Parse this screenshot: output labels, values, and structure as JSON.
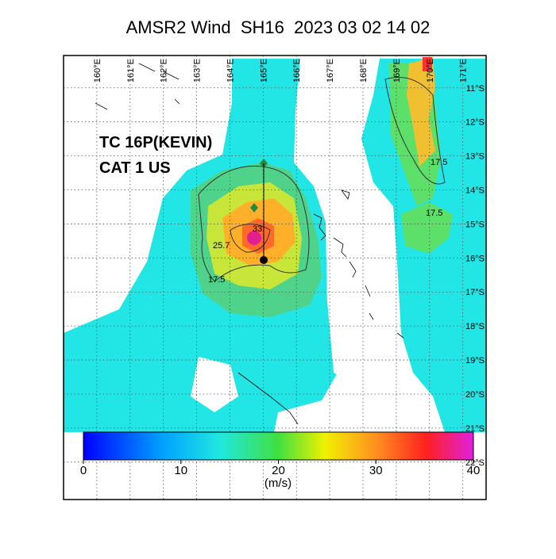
{
  "title": "AMSR2 Wind  SH16  2023 03 02 14 02",
  "storm_name": "TC 16P(KEVIN)",
  "storm_category": "CAT 1 US",
  "map": {
    "xlim": [
      159.0,
      171.7
    ],
    "ylim": [
      -10.05,
      -23.1
    ],
    "xticks": [
      {
        "value": 160,
        "label": "160°E"
      },
      {
        "value": 161,
        "label": "161°E"
      },
      {
        "value": 162,
        "label": "162°E"
      },
      {
        "value": 163,
        "label": "163°E"
      },
      {
        "value": 164,
        "label": "164°E"
      },
      {
        "value": 165,
        "label": "165°E"
      },
      {
        "value": 166,
        "label": "166°E"
      },
      {
        "value": 167,
        "label": "167°E"
      },
      {
        "value": 168,
        "label": "168°E"
      },
      {
        "value": 169,
        "label": "169°E"
      },
      {
        "value": 170,
        "label": "170°E"
      },
      {
        "value": 171,
        "label": "171°E"
      }
    ],
    "yticks": [
      {
        "value": -11,
        "label": "11°S"
      },
      {
        "value": -12,
        "label": "12°S"
      },
      {
        "value": -13,
        "label": "13°S"
      },
      {
        "value": -14,
        "label": "14°S"
      },
      {
        "value": -15,
        "label": "15°S"
      },
      {
        "value": -16,
        "label": "16°S"
      },
      {
        "value": -17,
        "label": "17°S"
      },
      {
        "value": -18,
        "label": "18°S"
      },
      {
        "value": -19,
        "label": "19°S"
      },
      {
        "value": -20,
        "label": "20°S"
      },
      {
        "value": -21,
        "label": "21°S"
      },
      {
        "value": -22,
        "label": "22°S"
      }
    ],
    "contour_labels": [
      "25.7",
      "33",
      "17.5",
      "17.5",
      "17.5"
    ]
  },
  "colorbar": {
    "lim": [
      0,
      40
    ],
    "ticks": [
      0,
      10,
      20,
      30,
      40
    ],
    "label": "(m/s)"
  }
}
